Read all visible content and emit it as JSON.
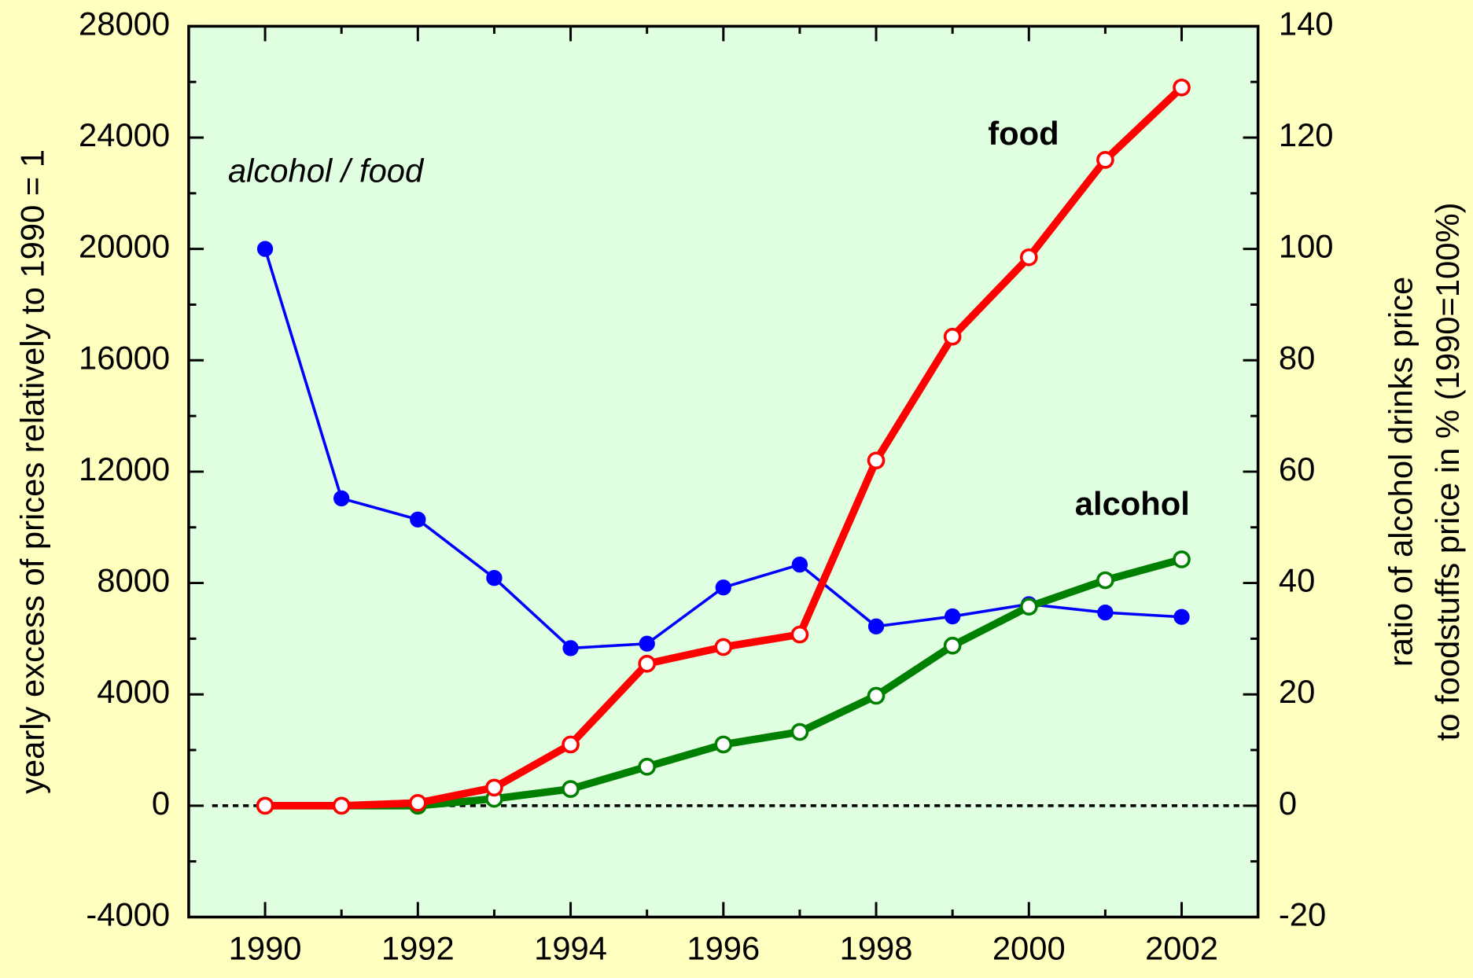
{
  "chart_data": {
    "type": "line",
    "x": [
      1990,
      1991,
      1992,
      1993,
      1994,
      1995,
      1996,
      1997,
      1998,
      1999,
      2000,
      2001,
      2002
    ],
    "xlim": [
      1989,
      2003
    ],
    "xticks": [
      1990,
      1992,
      1994,
      1996,
      1998,
      2000,
      2002
    ],
    "ylim": [
      -4000,
      28000
    ],
    "yticks": [
      -4000,
      0,
      4000,
      8000,
      12000,
      16000,
      20000,
      24000,
      28000
    ],
    "y2lim": [
      -20,
      140
    ],
    "y2ticks": [
      -20,
      0,
      20,
      40,
      60,
      80,
      100,
      120,
      140
    ],
    "ylabel": "yearly excess of prices relatively to 1990 = 1",
    "y2label": [
      "ratio of alcohol drinks price",
      "to foodstuffs price in % (1990=100%)"
    ],
    "series": [
      {
        "name": "food",
        "color": "#ff0000",
        "values": [
          0,
          0,
          100,
          650,
          2200,
          5100,
          5700,
          6150,
          12400,
          16850,
          19700,
          23200,
          25800
        ]
      },
      {
        "name": "alcohol",
        "color": "#008000",
        "values": [
          0,
          0,
          0,
          250,
          600,
          1400,
          2200,
          2650,
          3950,
          5750,
          7150,
          8100,
          8850
        ]
      },
      {
        "name": "alcohol / food",
        "color": "#0000ff",
        "axis": "y2",
        "values": [
          100,
          55.2,
          51.4,
          40.9,
          28.3,
          29.1,
          39.2,
          43.3,
          32.2,
          34.0,
          36.2,
          34.7,
          33.9
        ]
      }
    ]
  }
}
